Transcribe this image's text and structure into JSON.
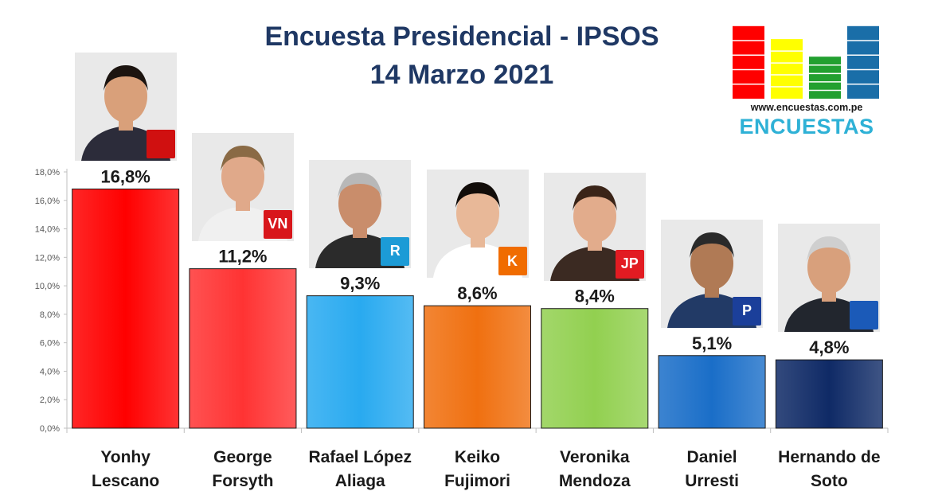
{
  "header": {
    "title_line1": "Encuesta Presidencial - IPSOS",
    "title_line2": "14 Marzo 2021"
  },
  "logo": {
    "url": "www.encuestas.com.pe",
    "word": "ENCUESTAS",
    "bar_colors": [
      "#ff0000",
      "#ffff00",
      "#22a030",
      "#1a6ea8"
    ]
  },
  "chart_data": {
    "type": "bar",
    "title": "Encuesta Presidencial - IPSOS",
    "subtitle": "14 Marzo 2021",
    "categories": [
      "Yonhy Lescano",
      "George Forsyth",
      "Rafael López Aliaga",
      "Keiko Fujimori",
      "Veronika Mendoza",
      "Daniel Urresti",
      "Hernando de Soto"
    ],
    "category_lines": [
      [
        "Yonhy",
        "Lescano"
      ],
      [
        "George",
        "Forsyth"
      ],
      [
        "Rafael López",
        "Aliaga"
      ],
      [
        "Keiko",
        "Fujimori"
      ],
      [
        "Veronika",
        "Mendoza"
      ],
      [
        "Daniel",
        "Urresti"
      ],
      [
        "Hernando de",
        "Soto"
      ]
    ],
    "values": [
      16.8,
      11.2,
      9.3,
      8.6,
      8.4,
      5.1,
      4.8
    ],
    "value_labels": [
      "16,8%",
      "11,2%",
      "9,3%",
      "8,6%",
      "8,4%",
      "5,1%",
      "4,8%"
    ],
    "bar_colors": [
      "#ff0000",
      "#ff3333",
      "#29aaf0",
      "#f07010",
      "#92d050",
      "#1a6ec8",
      "#0f2a66"
    ],
    "ylim": [
      0,
      18
    ],
    "yticks": [
      "0,0%",
      "2,0%",
      "4,0%",
      "6,0%",
      "8,0%",
      "10,0%",
      "12,0%",
      "14,0%",
      "16,0%",
      "18,0%"
    ],
    "ytick_values": [
      0,
      2,
      4,
      6,
      8,
      10,
      12,
      14,
      16,
      18
    ],
    "grid": false,
    "legend": "none"
  },
  "candidates": [
    {
      "photo": "portrait-yonhy-lescano",
      "badge_icon": "accion-popular-shovel-icon",
      "badge_text": "",
      "badge_color": "#d01010"
    },
    {
      "photo": "portrait-george-forsyth",
      "badge_icon": "victoria-nacional-bell-icon",
      "badge_text": "VN",
      "badge_color": "#d8161b"
    },
    {
      "photo": "portrait-rafael-lopez-aliaga",
      "badge_icon": "renovacion-popular-r-icon",
      "badge_text": "R",
      "badge_color": "#1c9bd6"
    },
    {
      "photo": "portrait-keiko-fujimori",
      "badge_icon": "fuerza-popular-k-icon",
      "badge_text": "K",
      "badge_color": "#f06c00"
    },
    {
      "photo": "portrait-veronika-mendoza",
      "badge_icon": "juntos-por-el-peru-jp-icon",
      "badge_text": "JP",
      "badge_color": "#e21b22"
    },
    {
      "photo": "portrait-daniel-urresti",
      "badge_icon": "podemos-p-icon",
      "badge_text": "P",
      "badge_color": "#1b3f9a"
    },
    {
      "photo": "portrait-hernando-de-soto",
      "badge_icon": "avanza-pais-icon",
      "badge_text": "",
      "badge_color": "#1b5ab8"
    }
  ]
}
